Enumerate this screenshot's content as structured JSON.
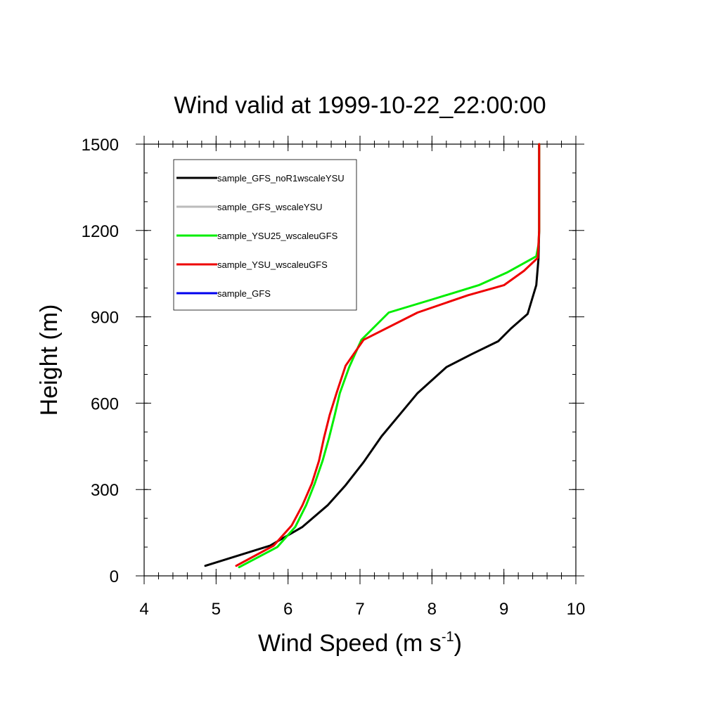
{
  "chart_data": {
    "type": "line",
    "title": "Wind valid at 1999-10-22_22:00:00",
    "xlabel_main": "Wind Speed (m s",
    "xlabel_sup": "-1",
    "xlabel_end": ")",
    "ylabel": "Height (m)",
    "xlim": [
      4,
      10
    ],
    "ylim": [
      0,
      1500
    ],
    "x_major_ticks": [
      4,
      5,
      6,
      7,
      8,
      9,
      10
    ],
    "x_minor_step": 0.2,
    "y_major_ticks": [
      0,
      300,
      600,
      900,
      1200,
      1500
    ],
    "y_minor_step": 100,
    "x_tick_labels": [
      "4",
      "5",
      "6",
      "7",
      "8",
      "9",
      "10"
    ],
    "y_tick_labels": [
      "0",
      "300",
      "600",
      "900",
      "1200",
      "1500"
    ],
    "legend_position": "top-left",
    "series": [
      {
        "name": "sample_GFS_noR1wscaleYSU",
        "color": "#000000",
        "points": [
          [
            4.85,
            35
          ],
          [
            5.75,
            105
          ],
          [
            6.2,
            170
          ],
          [
            6.55,
            245
          ],
          [
            6.8,
            315
          ],
          [
            7.05,
            395
          ],
          [
            7.3,
            485
          ],
          [
            7.55,
            560
          ],
          [
            7.8,
            635
          ],
          [
            8.2,
            725
          ],
          [
            8.55,
            770
          ],
          [
            8.92,
            815
          ],
          [
            9.1,
            860
          ],
          [
            9.33,
            910
          ],
          [
            9.45,
            1010
          ],
          [
            9.48,
            1100
          ],
          [
            9.49,
            1200
          ],
          [
            9.49,
            1300
          ],
          [
            9.49,
            1400
          ],
          [
            9.49,
            1500
          ]
        ]
      },
      {
        "name": "sample_GFS_wscaleYSU",
        "color": "#bbbbbb",
        "points": []
      },
      {
        "name": "sample_YSU25_wscaleuGFS",
        "color": "#00ee00",
        "points": [
          [
            5.32,
            30
          ],
          [
            5.85,
            100
          ],
          [
            6.1,
            170
          ],
          [
            6.25,
            245
          ],
          [
            6.37,
            320
          ],
          [
            6.48,
            400
          ],
          [
            6.57,
            480
          ],
          [
            6.65,
            560
          ],
          [
            6.72,
            635
          ],
          [
            6.85,
            725
          ],
          [
            7.02,
            820
          ],
          [
            7.4,
            915
          ],
          [
            8.0,
            960
          ],
          [
            8.65,
            1010
          ],
          [
            9.05,
            1055
          ],
          [
            9.45,
            1110
          ],
          [
            9.48,
            1150
          ],
          [
            9.49,
            1200
          ],
          [
            9.49,
            1300
          ],
          [
            9.49,
            1400
          ],
          [
            9.49,
            1500
          ]
        ]
      },
      {
        "name": "sample_YSU_wscaleuGFS",
        "color": "#ee0000",
        "points": [
          [
            5.28,
            35
          ],
          [
            5.8,
            105
          ],
          [
            6.05,
            175
          ],
          [
            6.2,
            245
          ],
          [
            6.33,
            320
          ],
          [
            6.43,
            400
          ],
          [
            6.5,
            480
          ],
          [
            6.58,
            560
          ],
          [
            6.68,
            640
          ],
          [
            6.8,
            730
          ],
          [
            7.05,
            820
          ],
          [
            7.8,
            915
          ],
          [
            8.5,
            975
          ],
          [
            9.0,
            1010
          ],
          [
            9.28,
            1060
          ],
          [
            9.47,
            1105
          ],
          [
            9.48,
            1150
          ],
          [
            9.49,
            1200
          ],
          [
            9.49,
            1300
          ],
          [
            9.49,
            1400
          ],
          [
            9.49,
            1500
          ]
        ]
      },
      {
        "name": "sample_GFS",
        "color": "#0000ee",
        "points": []
      }
    ]
  }
}
